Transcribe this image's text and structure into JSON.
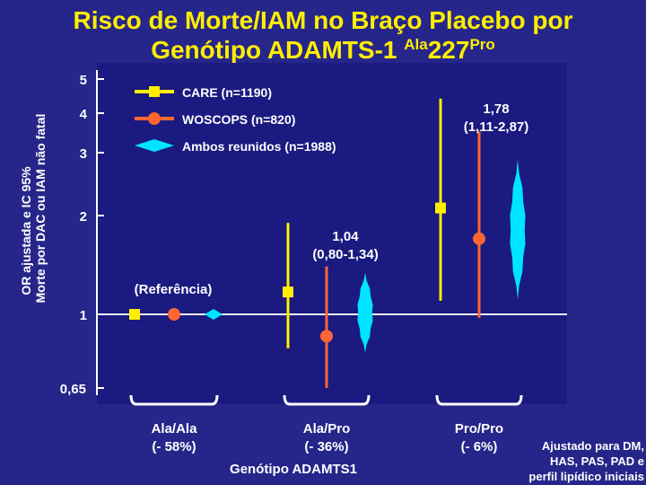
{
  "title": {
    "line1": "Risco de Morte/IAM no Braço Placebo por",
    "line2_prefix": "Genótipo ADAMTS-1 ",
    "line2_sup1": "Ala",
    "line2_mid": "227",
    "line2_sup2": "Pro"
  },
  "chart_data": {
    "type": "forest-plot",
    "title": "Risco de Morte/IAM no Braço Placebo por Genótipo ADAMTS-1 Ala227Pro",
    "ylabel": "OR ajustada e IC 95% Morte por DAC ou IAM não fatal",
    "ylabel_lines": [
      "OR ajustada e IC 95%",
      "Morte por DAC ou IAM não fatal"
    ],
    "yticks": [
      {
        "value": 5,
        "label": "5"
      },
      {
        "value": 4,
        "label": "4"
      },
      {
        "value": 3,
        "label": "3"
      },
      {
        "value": 2,
        "label": "2"
      },
      {
        "value": 1,
        "label": "1"
      },
      {
        "value": 0.65,
        "label": "0,65"
      }
    ],
    "ylim": [
      0.65,
      5
    ],
    "reference_value": 1,
    "series": [
      {
        "name": "CARE (n=1190)",
        "marker": "square",
        "color": "#ffee00"
      },
      {
        "name": "WOSCOPS (n=820)",
        "marker": "circle",
        "color": "#ff6633"
      },
      {
        "name": "Ambos reunidos (n=1988)",
        "marker": "diamond",
        "color": "#00e5ff"
      }
    ],
    "groups": [
      {
        "label_lines": [
          "Ala/Ala",
          "(- 58%)"
        ],
        "points": [
          {
            "series": 0,
            "y": 1
          },
          {
            "series": 1,
            "y": 1
          },
          {
            "series": 2,
            "y": 1
          }
        ]
      },
      {
        "label_lines": [
          "Ala/Pro",
          "(- 36%)"
        ],
        "points": [
          {
            "series": 0,
            "y": 1.17,
            "lo": 0.82,
            "hi": 1.9
          },
          {
            "series": 1,
            "y": 0.88,
            "lo": 0.65,
            "hi": 1.4
          },
          {
            "series": 2,
            "y": 1.04,
            "lo": 0.8,
            "hi": 1.34
          }
        ]
      },
      {
        "label_lines": [
          "Pro/Pro",
          "(- 6%)"
        ],
        "points": [
          {
            "series": 0,
            "y": 2.1,
            "lo": 1.1,
            "hi": 4.4
          },
          {
            "series": 1,
            "y": 1.7,
            "lo": 0.98,
            "hi": 3.5
          },
          {
            "series": 2,
            "y": 1.78,
            "lo": 1.11,
            "hi": 2.87
          }
        ]
      }
    ],
    "annotations": [
      {
        "text_lines": [
          "1,04",
          "(0,80-1,34)"
        ],
        "group": 1
      },
      {
        "text_lines": [
          "1,78",
          "(1,11-2,87)"
        ],
        "group": 2
      },
      {
        "text_lines": [
          "(Referência)"
        ],
        "group": 0
      }
    ],
    "xlabel": "Genótipo ADAMTS1"
  },
  "note_lines": [
    "Ajustado para DM,",
    "HAS, PAS, PAD e",
    "perfil lipídico iniciais"
  ]
}
